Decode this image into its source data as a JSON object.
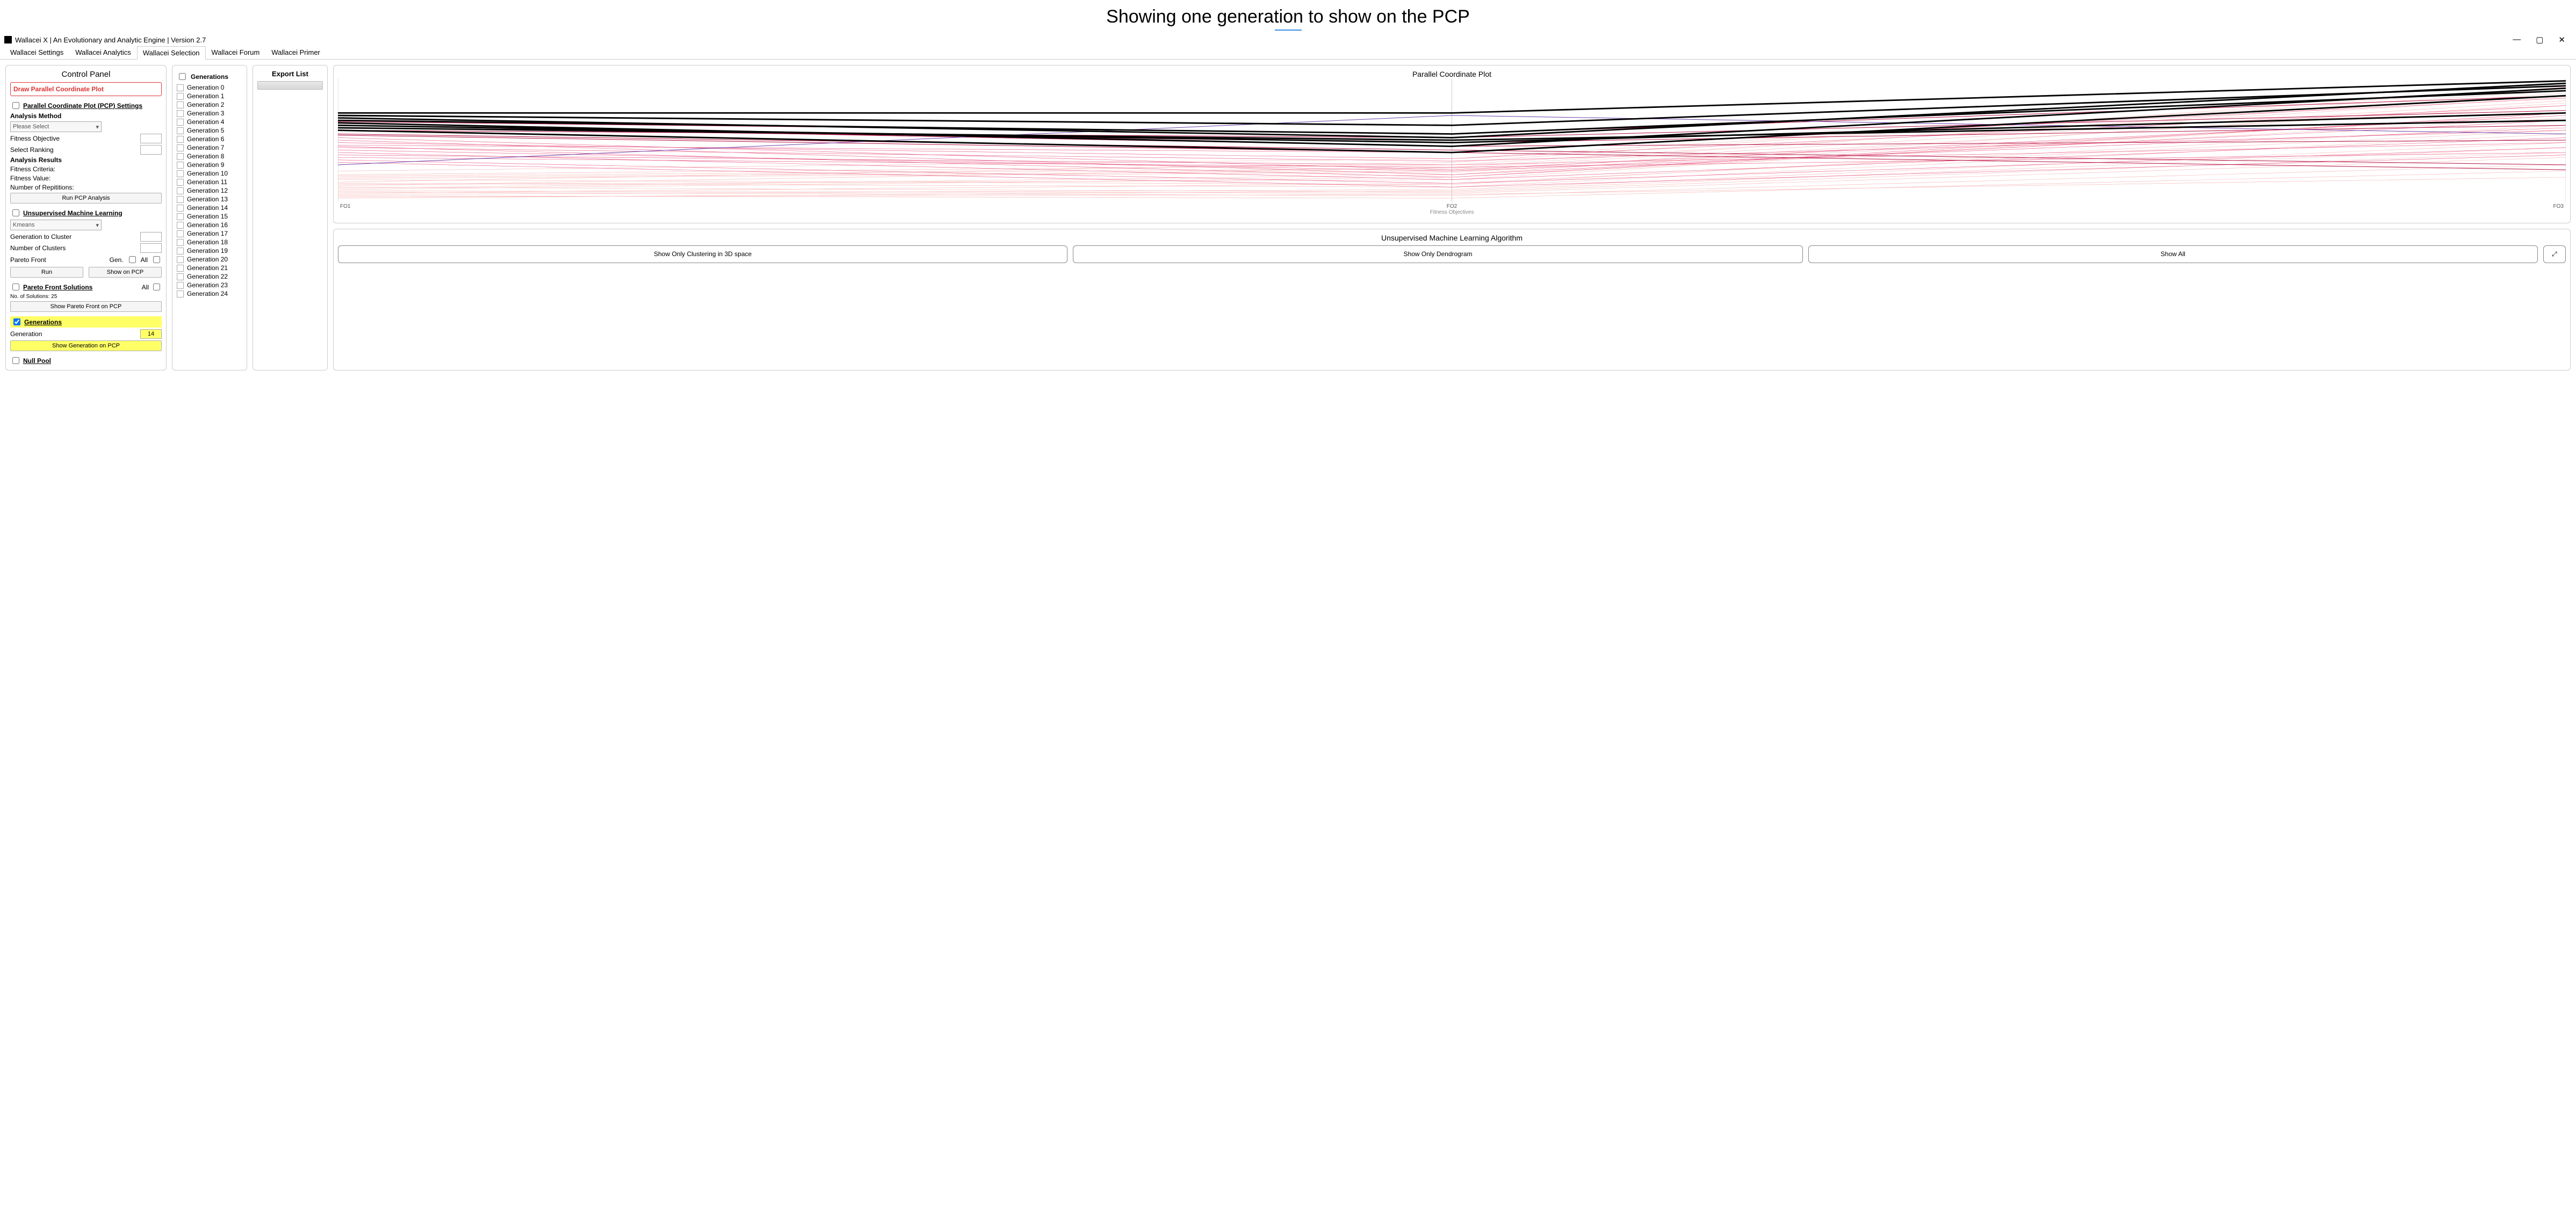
{
  "page_heading": "Showing one generation to show on the PCP",
  "app_title": "Wallacei X  |  An Evolutionary and Analytic Engine  |  Version 2.7",
  "window_buttons": {
    "min": "—",
    "max": "▢",
    "close": "✕"
  },
  "tabs": [
    "Wallacei Settings",
    "Wallacei Analytics",
    "Wallacei Selection",
    "Wallacei Forum",
    "Wallacei Primer"
  ],
  "active_tab_index": 2,
  "control_panel_title": "Control Panel",
  "draw_pcp_btn": "Draw Parallel Coordinate Plot",
  "pcp_settings_label": "Parallel Coordinate Plot (PCP) Settings",
  "analysis_method_label": "Analysis Method",
  "analysis_method_placeholder": "Please Select",
  "fitness_objective_label": "Fitness Objective",
  "select_ranking_label": "Select Ranking",
  "analysis_results_label": "Analysis Results",
  "fitness_criteria_label": "Fitness Criteria:",
  "fitness_value_label": "Fitness Value:",
  "num_repetitions_label": "Number of Repititions:",
  "run_pcp_btn": "Run PCP Analysis",
  "uml_label": "Unsupervised Machine Learning",
  "uml_method_placeholder": "Kmeans",
  "gen_to_cluster_label": "Generation to Cluster",
  "num_clusters_label": "Number of Clusters",
  "pareto_front_label": "Pareto Front",
  "gen_abbr": "Gen.",
  "all_label": "All",
  "run_btn": "Run",
  "show_on_pcp_btn": "Show on PCP",
  "pfs_label": "Pareto Front Solutions",
  "pfs_all_label": "All",
  "num_solutions_label": "No. of Solutions: 25",
  "show_pareto_btn": "Show Pareto Front on PCP",
  "generations_section_label": "Generations",
  "generation_row_label": "Generation",
  "generation_value": "14",
  "show_gen_btn": "Show Generation on PCP",
  "null_pool_label": "Null Pool",
  "gens_header": "Generations",
  "generations": [
    "Generation 0",
    "Generation 1",
    "Generation 2",
    "Generation 3",
    "Generation 4",
    "Generation 5",
    "Generation 6",
    "Generation 7",
    "Generation 8",
    "Generation 9",
    "Generation 10",
    "Generation 11",
    "Generation 12",
    "Generation 13",
    "Generation 14",
    "Generation 15",
    "Generation 16",
    "Generation 17",
    "Generation 18",
    "Generation 19",
    "Generation 20",
    "Generation 21",
    "Generation 22",
    "Generation 23",
    "Generation 24"
  ],
  "export_header": "Export List",
  "pcp_chart": {
    "title": "Parallel Coordinate Plot",
    "axis_caption": "Fitness Objectives",
    "axes": [
      "FO1",
      "FO2",
      "FO3"
    ],
    "axis_x": [
      0,
      50,
      100
    ],
    "y_range": [
      0,
      100
    ],
    "colors": {
      "light": "#f7b0b0",
      "mid": "#e64a7a",
      "dark": "#b01040",
      "purple": "#6a3ea6",
      "black": "#000000",
      "grid": "#cccccc",
      "bg": "#ffffff"
    },
    "stroke_widths": {
      "thin": 0.6,
      "med": 1.0,
      "thick": 2.8
    },
    "light_lines": [
      [
        12,
        8,
        40
      ],
      [
        15,
        12,
        55
      ],
      [
        10,
        20,
        68
      ],
      [
        8,
        5,
        30
      ],
      [
        18,
        14,
        62
      ],
      [
        20,
        25,
        78
      ],
      [
        6,
        10,
        48
      ],
      [
        14,
        18,
        72
      ],
      [
        22,
        30,
        85
      ],
      [
        9,
        7,
        36
      ],
      [
        5,
        3,
        25
      ],
      [
        11,
        22,
        80
      ],
      [
        25,
        35,
        90
      ],
      [
        7,
        15,
        58
      ],
      [
        13,
        28,
        88
      ],
      [
        4,
        6,
        20
      ],
      [
        16,
        32,
        93
      ],
      [
        19,
        24,
        70
      ],
      [
        3,
        9,
        44
      ],
      [
        21,
        27,
        82
      ]
    ],
    "mid_lines": [
      [
        40,
        18,
        52
      ],
      [
        42,
        25,
        60
      ],
      [
        38,
        30,
        48
      ],
      [
        45,
        20,
        72
      ],
      [
        36,
        28,
        40
      ],
      [
        48,
        35,
        78
      ],
      [
        50,
        22,
        66
      ],
      [
        34,
        15,
        44
      ],
      [
        46,
        40,
        84
      ],
      [
        44,
        33,
        58
      ],
      [
        52,
        26,
        70
      ],
      [
        32,
        12,
        38
      ]
    ],
    "dark_lines": [
      [
        55,
        42,
        30
      ],
      [
        60,
        48,
        62
      ],
      [
        58,
        52,
        74
      ],
      [
        62,
        45,
        50
      ],
      [
        65,
        55,
        86
      ],
      [
        54,
        40,
        26
      ]
    ],
    "purple_lines": [
      [
        30,
        70,
        55
      ]
    ],
    "black_lines": [
      [
        62,
        48,
        72
      ],
      [
        64,
        45,
        92
      ],
      [
        60,
        50,
        66
      ],
      [
        68,
        52,
        96
      ],
      [
        72,
        72,
        98
      ],
      [
        58,
        40,
        86
      ],
      [
        66,
        55,
        90
      ],
      [
        70,
        62,
        94
      ]
    ]
  },
  "uml_panel": {
    "title": "Unsupervised Machine Learning Algorithm",
    "btn_cluster": "Show Only Clustering in 3D space",
    "btn_dendro": "Show Only Dendrogram",
    "btn_all": "Show All",
    "zoom_icon": "⤢"
  }
}
